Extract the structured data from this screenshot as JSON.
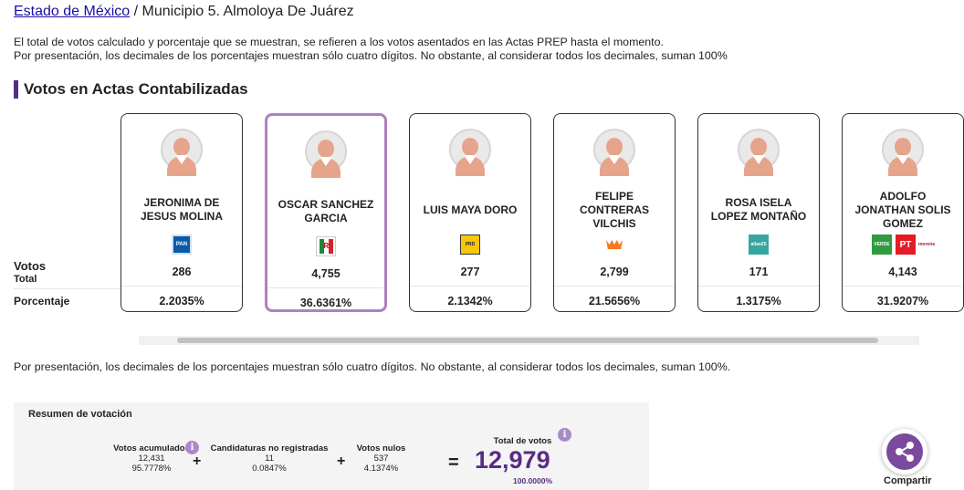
{
  "breadcrumb": {
    "state_link": "Estado de México",
    "separator": " / ",
    "current": "Municipio 5. Almoloya De Juárez"
  },
  "notes": {
    "line1": "El total de votos calculado y porcentaje que se muestran, se refieren a los votos asentados en las Actas PREP hasta el momento.",
    "line2": "Por presentación, los decimales de los porcentajes muestran sólo cuatro dígitos. No obstante, al considerar todos los decimales, suman 100%",
    "bottom": "Por presentación, los decimales de los porcentajes muestran sólo cuatro dígitos. No obstante, al considerar todos los decimales, suman 100%."
  },
  "section_title": "Votos en Actas Contabilizadas",
  "row_labels": {
    "votos": "Votos",
    "total": "Total",
    "porcentaje": "Porcentaje"
  },
  "candidates": [
    {
      "name": "JERONIMA DE\nJESUS MOLINA",
      "votes": "286",
      "pct": "2.2035%",
      "selected": false,
      "parties": [
        {
          "id": "pan",
          "icon": "pan-logo-icon",
          "text": "PAN"
        }
      ]
    },
    {
      "name": "OSCAR SANCHEZ\nGARCIA",
      "votes": "4,755",
      "pct": "36.6361%",
      "selected": true,
      "parties": [
        {
          "id": "pri",
          "icon": "pri-logo-icon",
          "text": "PRI"
        }
      ]
    },
    {
      "name": "LUIS MAYA DORO",
      "votes": "277",
      "pct": "2.1342%",
      "selected": false,
      "parties": [
        {
          "id": "prd",
          "icon": "prd-logo-icon",
          "text": "PRD"
        }
      ]
    },
    {
      "name": "FELIPE\nCONTRERAS\nVILCHIS",
      "votes": "2,799",
      "pct": "21.5656%",
      "selected": false,
      "parties": [
        {
          "id": "mc",
          "icon": "movimiento-ciudadano-logo-icon",
          "text": ""
        }
      ]
    },
    {
      "name": "ROSA ISELA\nLOPEZ MONTAÑO",
      "votes": "171",
      "pct": "1.3175%",
      "selected": false,
      "parties": [
        {
          "id": "pmc",
          "icon": "partido-local-logo-icon",
          "text": "allan25"
        }
      ]
    },
    {
      "name": "ADOLFO\nJONATHAN SOLIS\nGOMEZ",
      "votes": "4,143",
      "pct": "31.9207%",
      "selected": false,
      "parties": [
        {
          "id": "verde",
          "icon": "verde-logo-icon",
          "text": "VERDE"
        },
        {
          "id": "pt",
          "icon": "pt-logo-icon",
          "text": "PT"
        },
        {
          "id": "morena",
          "icon": "morena-logo-icon",
          "text": "morena"
        }
      ]
    }
  ],
  "summary": {
    "title": "Resumen de votación",
    "acumulados": {
      "label": "Votos acumulados",
      "value": "12,431",
      "pct": "95.7778%"
    },
    "no_registradas": {
      "label": "Candidaturas no registradas",
      "value": "11",
      "pct": "0.0847%"
    },
    "nulos": {
      "label": "Votos nulos",
      "value": "537",
      "pct": "4.1374%"
    },
    "total": {
      "label": "Total de votos",
      "value": "12,979",
      "pct": "100.0000%"
    },
    "plus": "+",
    "equals": "=",
    "info": "i"
  },
  "share": {
    "label": "Compartir",
    "icon": "share-icon"
  },
  "colors": {
    "accent": "#582c83",
    "selected_border": "#b07fc1",
    "link": "#1a0dab"
  }
}
